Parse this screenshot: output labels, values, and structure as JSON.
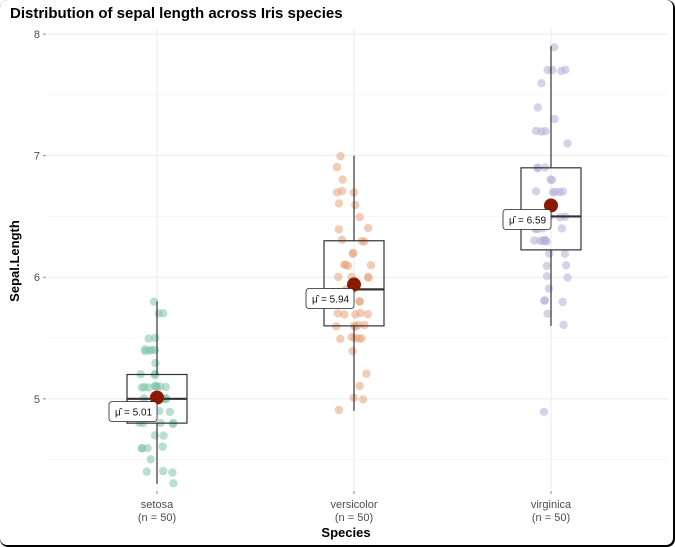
{
  "chart_data": {
    "type": "scatter",
    "title": "Distribution of sepal length across Iris species",
    "xlabel": "Species",
    "ylabel": "Sepal.Length",
    "ylim": [
      4.25,
      8.05
    ],
    "yticks": [
      "5",
      "6",
      "7",
      "8"
    ],
    "grid": true,
    "legend": "none",
    "categories": [
      "setosa",
      "versicolor",
      "virginica"
    ],
    "category_counts": [
      "(n = 50)",
      "(n = 50)",
      "(n = 50)"
    ],
    "colors": {
      "setosa": "#7fc5a9",
      "versicolor": "#e8a37a",
      "virginica": "#b4afd5",
      "mean_point": "#8b1a00",
      "box": "#333333",
      "grid_major": "#ebebeb",
      "grid_minor": "#f4f4f4"
    },
    "boxes": [
      {
        "species": "setosa",
        "min": 4.3,
        "q1": 4.8,
        "median": 5.0,
        "q3": 5.2,
        "max": 5.8,
        "mean": 5.01,
        "mean_label": "= 5.01"
      },
      {
        "species": "versicolor",
        "min": 4.9,
        "q1": 5.6,
        "median": 5.9,
        "q3": 6.3,
        "max": 7.0,
        "mean": 5.94,
        "mean_label": "= 5.94"
      },
      {
        "species": "virginica",
        "min": 5.6,
        "q1": 6.225,
        "median": 6.5,
        "q3": 6.9,
        "max": 7.9,
        "mean": 6.59,
        "mean_label": "= 6.59"
      }
    ],
    "mean_symbol": "μ̂",
    "points": {
      "setosa": [
        5.1,
        4.9,
        4.7,
        4.6,
        5.0,
        5.4,
        4.6,
        5.0,
        4.4,
        4.9,
        5.4,
        4.8,
        4.8,
        4.3,
        5.8,
        5.7,
        5.4,
        5.1,
        5.7,
        5.1,
        5.4,
        5.1,
        4.6,
        5.1,
        4.8,
        5.0,
        5.0,
        5.2,
        5.2,
        4.7,
        4.8,
        5.4,
        5.2,
        5.5,
        4.9,
        5.0,
        5.5,
        4.9,
        4.4,
        5.1,
        5.0,
        4.5,
        4.4,
        5.0,
        5.1,
        4.8,
        5.1,
        4.6,
        5.3,
        5.0
      ],
      "versicolor": [
        7.0,
        6.4,
        6.9,
        5.5,
        6.5,
        5.7,
        6.3,
        4.9,
        6.6,
        5.2,
        5.0,
        5.9,
        6.0,
        6.1,
        5.6,
        6.7,
        5.6,
        5.8,
        6.2,
        5.6,
        5.9,
        6.1,
        6.3,
        6.1,
        6.4,
        6.6,
        6.8,
        6.7,
        6.0,
        5.7,
        5.5,
        5.5,
        5.8,
        6.0,
        5.4,
        6.0,
        6.7,
        6.3,
        5.6,
        5.5,
        5.5,
        6.1,
        5.8,
        5.0,
        5.6,
        5.7,
        5.7,
        6.2,
        5.1,
        5.7
      ],
      "virginica": [
        6.3,
        5.8,
        7.1,
        6.3,
        6.5,
        7.6,
        4.9,
        7.3,
        6.7,
        7.2,
        6.5,
        6.4,
        6.8,
        5.7,
        5.8,
        6.4,
        6.5,
        7.7,
        7.7,
        6.0,
        6.9,
        5.6,
        7.7,
        6.3,
        6.7,
        7.2,
        6.2,
        6.1,
        6.4,
        7.2,
        7.4,
        7.9,
        6.4,
        6.3,
        6.1,
        7.7,
        6.3,
        6.4,
        6.0,
        6.9,
        6.7,
        6.9,
        5.8,
        6.8,
        6.7,
        6.7,
        6.3,
        6.5,
        6.2,
        5.9
      ]
    }
  }
}
